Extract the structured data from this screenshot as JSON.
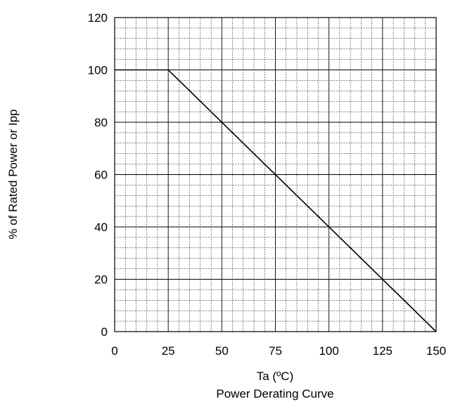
{
  "chart_data": {
    "type": "line",
    "title": "Power Derating Curve",
    "xlabel": "Ta (ºC)",
    "ylabel": "% of Rated Power or Ipp",
    "xlim": [
      0,
      150
    ],
    "ylim": [
      0,
      120
    ],
    "x_ticks": [
      0,
      25,
      50,
      75,
      100,
      125,
      150
    ],
    "y_ticks": [
      0,
      20,
      40,
      60,
      80,
      100,
      120
    ],
    "x_minor_step": 5,
    "y_minor_step": 4,
    "grid": true,
    "series": [
      {
        "x": [
          0,
          25,
          150
        ],
        "y": [
          100,
          100,
          0
        ],
        "color": "#000000"
      }
    ]
  }
}
